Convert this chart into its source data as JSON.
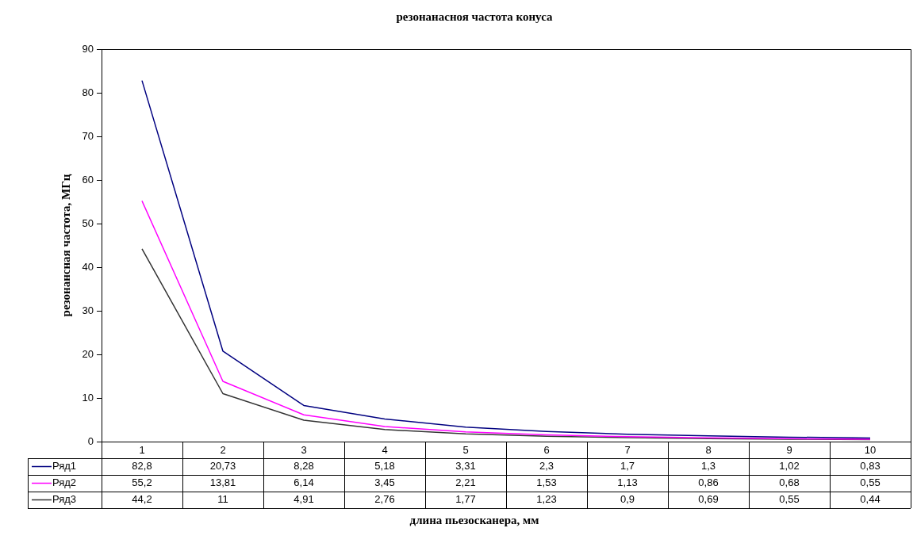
{
  "chart_data": {
    "type": "line",
    "title": "резонанасноя частота конуса",
    "xlabel": "длина пьезосканера, мм",
    "ylabel": "резонансная частота, МГц",
    "categories": [
      "1",
      "2",
      "3",
      "4",
      "5",
      "6",
      "7",
      "8",
      "9",
      "10"
    ],
    "series": [
      {
        "name": "Ряд1",
        "color": "#000080",
        "values": [
          82.8,
          20.73,
          8.28,
          5.18,
          3.31,
          2.3,
          1.7,
          1.3,
          1.02,
          0.83
        ],
        "value_labels": [
          "82,8",
          "20,73",
          "8,28",
          "5,18",
          "3,31",
          "2,3",
          "1,7",
          "1,3",
          "1,02",
          "0,83"
        ]
      },
      {
        "name": "Ряд2",
        "color": "#ff00ff",
        "values": [
          55.2,
          13.81,
          6.14,
          3.45,
          2.21,
          1.53,
          1.13,
          0.86,
          0.68,
          0.55
        ],
        "value_labels": [
          "55,2",
          "13,81",
          "6,14",
          "3,45",
          "2,21",
          "1,53",
          "1,13",
          "0,86",
          "0,68",
          "0,55"
        ]
      },
      {
        "name": "Ряд3",
        "color": "#333333",
        "values": [
          44.2,
          11,
          4.91,
          2.76,
          1.77,
          1.23,
          0.9,
          0.69,
          0.55,
          0.44
        ],
        "value_labels": [
          "44,2",
          "11",
          "4,91",
          "2,76",
          "1,77",
          "1,23",
          "0,9",
          "0,69",
          "0,55",
          "0,44"
        ]
      }
    ],
    "ylim": [
      0,
      90
    ],
    "yticks": [
      0,
      10,
      20,
      30,
      40,
      50,
      60,
      70,
      80,
      90
    ],
    "grid": false,
    "legend": "bottom",
    "marker": "none",
    "line_style": "solid"
  }
}
